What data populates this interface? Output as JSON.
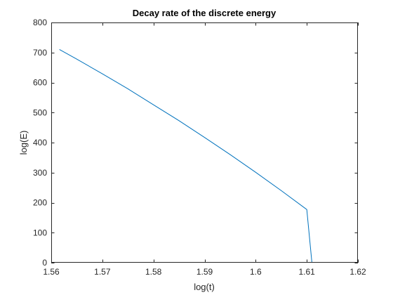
{
  "chart_data": {
    "type": "line",
    "title": "Decay rate of the discrete energy",
    "xlabel": "log(t)",
    "ylabel": "log(E)",
    "xlim": [
      1.56,
      1.62
    ],
    "ylim": [
      0,
      800
    ],
    "xticks": [
      1.56,
      1.57,
      1.58,
      1.59,
      1.6,
      1.61,
      1.62
    ],
    "xtick_labels": [
      "1.56",
      "1.57",
      "1.58",
      "1.59",
      "1.6",
      "1.61",
      "1.62"
    ],
    "yticks": [
      0,
      100,
      200,
      300,
      400,
      500,
      600,
      700,
      800
    ],
    "ytick_labels": [
      "0",
      "100",
      "200",
      "300",
      "400",
      "500",
      "600",
      "700",
      "800"
    ],
    "grid": false,
    "legend": "none",
    "series": [
      {
        "color": "#0072BD",
        "x": [
          1.5616,
          1.565,
          1.57,
          1.575,
          1.58,
          1.585,
          1.59,
          1.595,
          1.6,
          1.605,
          1.61,
          1.611
        ],
        "y": [
          710,
          678,
          629,
          579,
          526,
          473,
          417,
          360,
          301,
          240,
          177,
          0
        ]
      }
    ]
  }
}
